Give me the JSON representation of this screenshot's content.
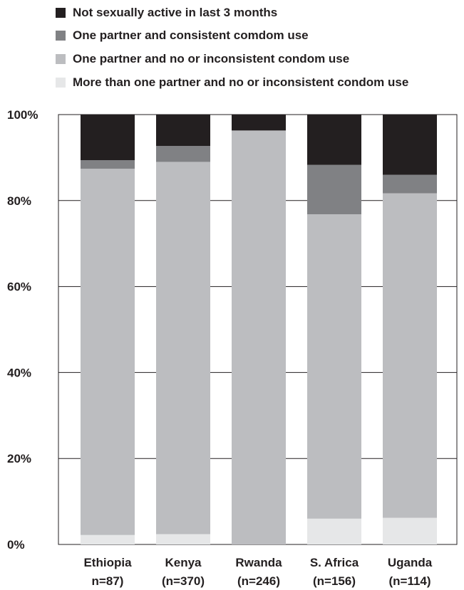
{
  "chart_data": {
    "type": "bar",
    "stacked": true,
    "categories": [
      "Ethiopia\nn=87)",
      "Kenya\n(n=370)",
      "Rwanda\n(n=246)",
      "S. Africa\n(n=156)",
      "Uganda\n(n=114)"
    ],
    "series": [
      {
        "name": "More than one partner and no or inconsistent condom use",
        "color": "#e6e7e8",
        "values": [
          2.2,
          2.4,
          0,
          6,
          6.2
        ]
      },
      {
        "name": "One partner and no or inconsistent condom use",
        "color": "#bcbdc0",
        "values": [
          85.2,
          86.6,
          96.3,
          70.8,
          75.5
        ]
      },
      {
        "name": "One partner and consistent comdom use",
        "color": "#808184",
        "values": [
          2.0,
          3.7,
          0,
          11.5,
          4.3
        ]
      },
      {
        "name": "Not sexually active in last 3 months",
        "color": "#231f20",
        "values": [
          10.6,
          7.3,
          3.7,
          11.7,
          14.0
        ]
      }
    ],
    "legend_order": [
      3,
      2,
      1,
      0
    ],
    "ylim": [
      0,
      100
    ],
    "yticks": [
      "0%",
      "20%",
      "40%",
      "60%",
      "80%",
      "100%"
    ],
    "ytick_values": [
      0,
      20,
      40,
      60,
      80,
      100
    ],
    "legend_position": "top-left",
    "grid": true
  }
}
